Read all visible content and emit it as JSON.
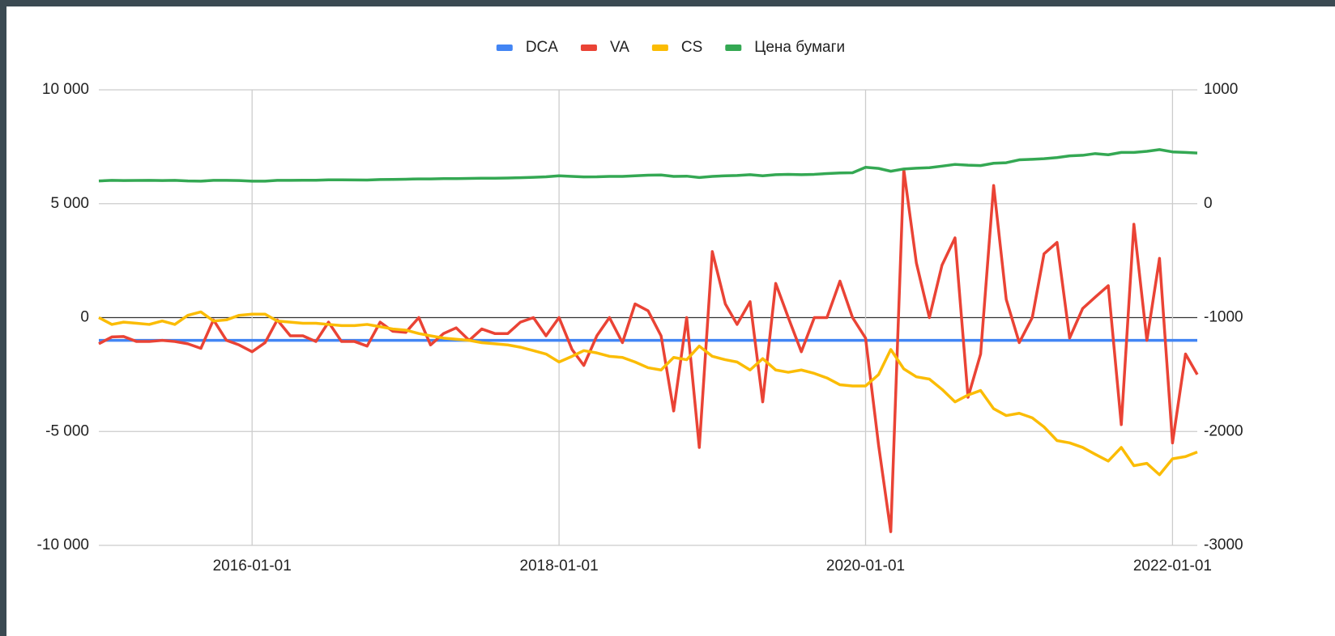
{
  "chart_data": {
    "type": "line",
    "x": [
      "2015-01-01",
      "2015-02-01",
      "2015-03-01",
      "2015-04-01",
      "2015-05-01",
      "2015-06-01",
      "2015-07-01",
      "2015-08-01",
      "2015-09-01",
      "2015-10-01",
      "2015-11-01",
      "2015-12-01",
      "2016-01-01",
      "2016-02-01",
      "2016-03-01",
      "2016-04-01",
      "2016-05-01",
      "2016-06-01",
      "2016-07-01",
      "2016-08-01",
      "2016-09-01",
      "2016-10-01",
      "2016-11-01",
      "2016-12-01",
      "2017-01-01",
      "2017-02-01",
      "2017-03-01",
      "2017-04-01",
      "2017-05-01",
      "2017-06-01",
      "2017-07-01",
      "2017-08-01",
      "2017-09-01",
      "2017-10-01",
      "2017-11-01",
      "2017-12-01",
      "2018-01-01",
      "2018-02-01",
      "2018-03-01",
      "2018-04-01",
      "2018-05-01",
      "2018-06-01",
      "2018-07-01",
      "2018-08-01",
      "2018-09-01",
      "2018-10-01",
      "2018-11-01",
      "2018-12-01",
      "2019-01-01",
      "2019-02-01",
      "2019-03-01",
      "2019-04-01",
      "2019-05-01",
      "2019-06-01",
      "2019-07-01",
      "2019-08-01",
      "2019-09-01",
      "2019-10-01",
      "2019-11-01",
      "2019-12-01",
      "2020-01-01",
      "2020-02-01",
      "2020-03-01",
      "2020-04-01",
      "2020-05-01",
      "2020-06-01",
      "2020-07-01",
      "2020-08-01",
      "2020-09-01",
      "2020-10-01",
      "2020-11-01",
      "2020-12-01",
      "2021-01-01",
      "2021-02-01",
      "2021-03-01",
      "2021-04-01",
      "2021-05-01",
      "2021-06-01",
      "2021-07-01",
      "2021-08-01",
      "2021-09-01",
      "2021-10-01",
      "2021-11-01",
      "2021-12-01",
      "2022-01-01",
      "2022-02-01",
      "2022-03-01"
    ],
    "xlim": [
      "2015-01-01",
      "2022-03-01"
    ],
    "xticks": [
      "2016-01-01",
      "2018-01-01",
      "2020-01-01",
      "2022-01-01"
    ],
    "ylim": [
      -10000,
      10000
    ],
    "yticks": [
      {
        "value": 10000,
        "label": "10 000"
      },
      {
        "value": 5000,
        "label": "5 000"
      },
      0,
      {
        "value": -5000,
        "label": "-5 000"
      },
      {
        "value": -10000,
        "label": "-10 000"
      }
    ],
    "y2lim": [
      -3000,
      1000
    ],
    "y2ticks": [
      1000,
      0,
      -1000,
      -2000,
      -3000
    ],
    "grid": true,
    "legend": "top",
    "series": [
      {
        "name": "DCA",
        "color": "#4285f4",
        "values": [
          -1000,
          -1000,
          -1000,
          -1000,
          -1000,
          -1000,
          -1000,
          -1000,
          -1000,
          -1000,
          -1000,
          -1000,
          -1000,
          -1000,
          -1000,
          -1000,
          -1000,
          -1000,
          -1000,
          -1000,
          -1000,
          -1000,
          -1000,
          -1000,
          -1000,
          -1000,
          -1000,
          -1000,
          -1000,
          -1000,
          -1000,
          -1000,
          -1000,
          -1000,
          -1000,
          -1000,
          -1000,
          -1000,
          -1000,
          -1000,
          -1000,
          -1000,
          -1000,
          -1000,
          -1000,
          -1000,
          -1000,
          -1000,
          -1000,
          -1000,
          -1000,
          -1000,
          -1000,
          -1000,
          -1000,
          -1000,
          -1000,
          -1000,
          -1000,
          -1000,
          -1000,
          -1000,
          -1000,
          -1000,
          -1000,
          -1000,
          -1000,
          -1000,
          -1000,
          -1000,
          -1000,
          -1000,
          -1000,
          -1000,
          -1000,
          -1000,
          -1000,
          -1000,
          -1000,
          -1000,
          -1000,
          -1000,
          -1000,
          -1000,
          -1000,
          -1000,
          -1000
        ]
      },
      {
        "name": "VA",
        "color": "#ea4335",
        "values": [
          -1150,
          -850,
          -830,
          -1050,
          -1050,
          -1000,
          -1050,
          -1150,
          -1350,
          -100,
          -1000,
          -1200,
          -1500,
          -1100,
          -100,
          -800,
          -800,
          -1050,
          -200,
          -1050,
          -1050,
          -1250,
          -200,
          -600,
          -650,
          0,
          -1200,
          -700,
          -450,
          -1000,
          -500,
          -700,
          -700,
          -200,
          0,
          -800,
          0,
          -1400,
          -2100,
          -800,
          0,
          -1100,
          600,
          300,
          -800,
          -4100,
          0,
          -5700,
          2900,
          600,
          -300,
          700,
          -3700,
          1500,
          0,
          -1500,
          0,
          0,
          1600,
          0,
          -900,
          -5600,
          -9400,
          6500,
          2400,
          0,
          2300,
          3500,
          -3500,
          -1600,
          5800,
          800,
          -1100,
          0,
          2800,
          3300,
          -900,
          400,
          900,
          1400,
          -4700,
          4100,
          -1000,
          2600,
          -5500,
          -1600,
          -2500
        ]
      },
      {
        "name": "CS",
        "color": "#fbbc04",
        "values": [
          0,
          -300,
          -200,
          -250,
          -300,
          -150,
          -300,
          100,
          250,
          -150,
          -100,
          100,
          150,
          150,
          -150,
          -200,
          -250,
          -250,
          -300,
          -350,
          -350,
          -300,
          -400,
          -500,
          -550,
          -700,
          -800,
          -900,
          -950,
          -1000,
          -1100,
          -1150,
          -1200,
          -1300,
          -1450,
          -1600,
          -1950,
          -1700,
          -1450,
          -1550,
          -1700,
          -1750,
          -1950,
          -2200,
          -2300,
          -1750,
          -1850,
          -1250,
          -1700,
          -1850,
          -1950,
          -2300,
          -1800,
          -2300,
          -2400,
          -2300,
          -2450,
          -2650,
          -2950,
          -3000,
          -3000,
          -2500,
          -1400,
          -2250,
          -2600,
          -2700,
          -3150,
          -3700,
          -3400,
          -3200,
          -4000,
          -4300,
          -4200,
          -4400,
          -4800,
          -5400,
          -5500,
          -5700,
          -6000,
          -6300,
          -5700,
          -6500,
          -6400,
          -6900,
          -6200,
          -6100,
          -5900
        ]
      },
      {
        "name": "Цена бумаги",
        "color": "#34a853",
        "axis": "y2",
        "values": [
          200,
          205,
          203,
          204,
          205,
          203,
          205,
          200,
          198,
          205,
          205,
          203,
          198,
          198,
          205,
          205,
          206,
          206,
          210,
          210,
          209,
          208,
          212,
          213,
          215,
          218,
          218,
          220,
          220,
          222,
          224,
          224,
          226,
          228,
          232,
          236,
          245,
          240,
          235,
          236,
          240,
          240,
          245,
          250,
          252,
          240,
          242,
          230,
          240,
          245,
          248,
          255,
          245,
          255,
          258,
          255,
          258,
          265,
          270,
          272,
          320,
          310,
          285,
          305,
          312,
          316,
          330,
          345,
          338,
          335,
          355,
          360,
          385,
          390,
          395,
          405,
          420,
          425,
          440,
          430,
          450,
          450,
          460,
          475,
          455,
          450,
          445
        ]
      }
    ]
  }
}
